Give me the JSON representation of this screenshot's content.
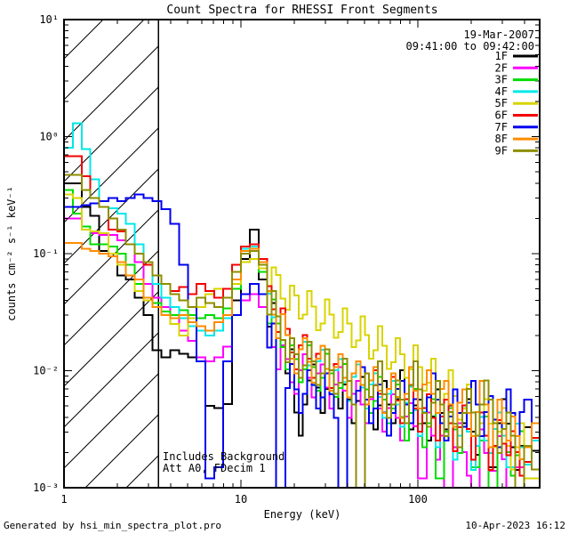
{
  "chart_data": {
    "type": "line",
    "step": true,
    "title": "Count Spectra for RHESSI Front Segments",
    "xlabel": "Energy (keV)",
    "ylabel": "counts cm⁻² s⁻¹ keV⁻¹",
    "xscale": "log",
    "yscale": "log",
    "xlim": [
      1,
      487
    ],
    "ylim": [
      0.001,
      10
    ],
    "grid": false,
    "legend_position": "top-right-inside",
    "observation_date": "19-Mar-2007",
    "observation_time_range": "09:41:00 to 09:42:00",
    "annotations": [
      "Includes Background",
      "Att A0, FDecim 1"
    ],
    "hatch_region": {
      "from": 1,
      "to": 3.4,
      "style": "diagonal-hatch"
    },
    "x_ticks": [
      {
        "v": 1,
        "label": "1"
      },
      {
        "v": 10,
        "label": "10"
      },
      {
        "v": 100,
        "label": "100"
      }
    ],
    "y_ticks": [
      {
        "v": 10,
        "label": "10¹"
      },
      {
        "v": 1,
        "label": "10⁰"
      },
      {
        "v": 0.1,
        "label": "10⁻¹"
      },
      {
        "v": 0.01,
        "label": "10⁻²"
      },
      {
        "v": 0.001,
        "label": "10⁻³"
      }
    ],
    "energy_bins": [
      1.0,
      1.12,
      1.26,
      1.41,
      1.58,
      1.78,
      2.0,
      2.24,
      2.51,
      2.82,
      3.16,
      3.55,
      3.98,
      4.47,
      5.01,
      5.62,
      6.31,
      7.08,
      7.94,
      8.91,
      10.0,
      11.2,
      12.6,
      14.1,
      15.8,
      17.8,
      20.0,
      22.4,
      25.1,
      28.2,
      31.6,
      35.5,
      39.8,
      44.7,
      50.1,
      56.2,
      63.1,
      70.8,
      79.4,
      89.1,
      100,
      112,
      126,
      141,
      158,
      178,
      200,
      224,
      251,
      282,
      316,
      355,
      398
    ],
    "series": [
      {
        "name": "1F",
        "color": "#000000",
        "values": [
          0.4,
          0.4,
          0.25,
          0.21,
          0.105,
          0.1,
          0.065,
          0.06,
          0.042,
          0.03,
          0.015,
          0.013,
          0.015,
          0.014,
          0.013,
          0.012,
          0.005,
          0.0048,
          0.0052,
          0.04,
          0.09,
          0.16,
          0.06,
          0.03,
          0.02,
          0.012,
          0.0035,
          0.0065,
          0.009,
          0.0055,
          0.0075,
          0.006,
          0.0045,
          0.007,
          0.0055,
          0.004,
          0.0065,
          0.0045,
          0.008,
          0.004,
          0.0045,
          0.0032,
          0.0055,
          0.004,
          0.0028,
          0.0045,
          0.0024,
          0.0035,
          0.0015,
          0.0045,
          0.0028,
          0.0018,
          0.0026
        ]
      },
      {
        "name": "2F",
        "color": "#FF00FF",
        "values": [
          0.2,
          0.2,
          0.17,
          0.15,
          0.145,
          0.145,
          0.13,
          0.12,
          0.085,
          0.055,
          0.042,
          0.035,
          0.028,
          0.022,
          0.018,
          0.013,
          0.012,
          0.013,
          0.016,
          0.03,
          0.04,
          0.045,
          0.035,
          0.02,
          0.013,
          0.01,
          0.008,
          0.011,
          0.0075,
          0.009,
          0.006,
          0.0085,
          0.005,
          0.0065,
          0.0045,
          0.006,
          0.0038,
          0.005,
          0.0032,
          0.0042,
          0.0012,
          0.0035,
          0.0022,
          0.0009,
          0.0028,
          0.0016,
          0.0008,
          0.0025,
          0.0014,
          0.0022,
          0.0009,
          0.0015,
          0.0008
        ]
      },
      {
        "name": "3F",
        "color": "#00DC00",
        "values": [
          0.35,
          0.22,
          0.17,
          0.12,
          0.12,
          0.115,
          0.1,
          0.08,
          0.055,
          0.042,
          0.038,
          0.032,
          0.03,
          0.033,
          0.03,
          0.028,
          0.03,
          0.028,
          0.034,
          0.05,
          0.1,
          0.11,
          0.07,
          0.032,
          0.02,
          0.013,
          0.01,
          0.013,
          0.0085,
          0.011,
          0.0075,
          0.009,
          0.0065,
          0.0085,
          0.0055,
          0.007,
          0.0045,
          0.006,
          0.0032,
          0.0055,
          0.0028,
          0.0045,
          0.0012,
          0.0038,
          0.0025,
          0.0042,
          0.0015,
          0.0032,
          0.0008,
          0.0028,
          0.0016,
          0.0024,
          0.0012
        ]
      },
      {
        "name": "4F",
        "color": "#00E8E8",
        "values": [
          0.8,
          1.3,
          0.78,
          0.43,
          0.25,
          0.245,
          0.22,
          0.18,
          0.12,
          0.08,
          0.055,
          0.042,
          0.035,
          0.028,
          0.024,
          0.022,
          0.02,
          0.022,
          0.028,
          0.06,
          0.11,
          0.115,
          0.08,
          0.036,
          0.024,
          0.016,
          0.012,
          0.014,
          0.0095,
          0.012,
          0.008,
          0.01,
          0.007,
          0.009,
          0.006,
          0.0075,
          0.005,
          0.0065,
          0.0042,
          0.0058,
          0.0035,
          0.005,
          0.0028,
          0.0045,
          0.0022,
          0.0038,
          0.0018,
          0.0032,
          0.0025,
          0.0035,
          0.0015,
          0.0028,
          0.002
        ]
      },
      {
        "name": "5F",
        "color": "#D8D400",
        "values": [
          0.32,
          0.3,
          0.16,
          0.155,
          0.15,
          0.1,
          0.08,
          0.065,
          0.048,
          0.04,
          0.035,
          0.03,
          0.025,
          0.02,
          0.028,
          0.035,
          0.045,
          0.05,
          0.05,
          0.055,
          0.085,
          0.09,
          0.075,
          0.06,
          0.052,
          0.042,
          0.035,
          0.038,
          0.028,
          0.032,
          0.024,
          0.027,
          0.02,
          0.023,
          0.016,
          0.019,
          0.013,
          0.015,
          0.011,
          0.013,
          0.0085,
          0.01,
          0.0065,
          0.008,
          0.0048,
          0.006,
          0.0035,
          0.0045,
          0.0028,
          0.0038,
          0.0018,
          0.0028,
          0.0012
        ]
      },
      {
        "name": "6F",
        "color": "#F40000",
        "values": [
          0.68,
          0.68,
          0.46,
          0.3,
          0.25,
          0.16,
          0.155,
          0.12,
          0.1,
          0.08,
          0.065,
          0.055,
          0.048,
          0.052,
          0.045,
          0.055,
          0.048,
          0.042,
          0.05,
          0.08,
          0.115,
          0.12,
          0.09,
          0.042,
          0.027,
          0.018,
          0.013,
          0.016,
          0.011,
          0.013,
          0.009,
          0.011,
          0.0075,
          0.0095,
          0.0065,
          0.008,
          0.0055,
          0.007,
          0.0045,
          0.006,
          0.0038,
          0.005,
          0.0032,
          0.0045,
          0.0026,
          0.004,
          0.0022,
          0.0035,
          0.0018,
          0.003,
          0.0024,
          0.0016,
          0.0021
        ]
      },
      {
        "name": "7F",
        "color": "#0000F0",
        "values": [
          0.25,
          0.25,
          0.26,
          0.27,
          0.28,
          0.3,
          0.28,
          0.3,
          0.32,
          0.3,
          0.28,
          0.24,
          0.18,
          0.08,
          0.035,
          0.012,
          0.0012,
          0.0015,
          0.012,
          0.03,
          0.045,
          0.055,
          0.045,
          0.02,
          0.0008,
          0.009,
          0.0055,
          0.008,
          0.006,
          0.0075,
          0.005,
          0.0008,
          0.0065,
          0.0085,
          0.0045,
          0.006,
          0.0035,
          0.0055,
          0.0065,
          0.0045,
          0.0055,
          0.0075,
          0.0045,
          0.0032,
          0.0055,
          0.0042,
          0.0065,
          0.0035,
          0.0048,
          0.0028,
          0.0055,
          0.0035,
          0.0045
        ]
      },
      {
        "name": "8F",
        "color": "#FF8C00",
        "values": [
          0.123,
          0.123,
          0.11,
          0.105,
          0.1,
          0.095,
          0.085,
          0.065,
          0.06,
          0.042,
          0.035,
          0.03,
          0.028,
          0.03,
          0.026,
          0.024,
          0.022,
          0.026,
          0.03,
          0.06,
          0.105,
          0.11,
          0.085,
          0.038,
          0.024,
          0.016,
          0.012,
          0.015,
          0.01,
          0.013,
          0.0085,
          0.011,
          0.0075,
          0.0095,
          0.0065,
          0.0085,
          0.0055,
          0.0075,
          0.005,
          0.0085,
          0.006,
          0.008,
          0.0055,
          0.0065,
          0.0042,
          0.0055,
          0.0035,
          0.0065,
          0.0028,
          0.0045,
          0.0032,
          0.0022,
          0.0028
        ]
      },
      {
        "name": "9F",
        "color": "#8E8E00",
        "values": [
          0.47,
          0.47,
          0.35,
          0.3,
          0.25,
          0.2,
          0.16,
          0.12,
          0.1,
          0.085,
          0.065,
          0.055,
          0.045,
          0.04,
          0.035,
          0.042,
          0.038,
          0.035,
          0.042,
          0.07,
          0.1,
          0.105,
          0.08,
          0.038,
          0.023,
          0.015,
          0.011,
          0.014,
          0.0095,
          0.012,
          0.008,
          0.01,
          0.0065,
          0.0009,
          0.0075,
          0.0095,
          0.005,
          0.0065,
          0.0045,
          0.0095,
          0.0055,
          0.0042,
          0.0065,
          0.0035,
          0.0028,
          0.0055,
          0.0035,
          0.0065,
          0.0045,
          0.0025,
          0.0035,
          0.0008,
          0.0018
        ]
      }
    ]
  },
  "footer": {
    "left": "Generated by hsi_min_spectra_plot.pro",
    "right": "10-Apr-2023 16:12"
  }
}
